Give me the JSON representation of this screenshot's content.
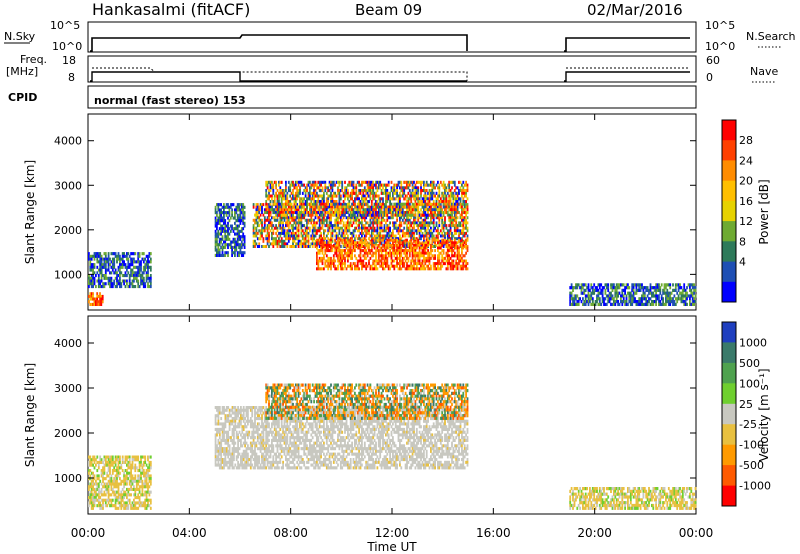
{
  "header": {
    "station": "Hankasalmi (fitACF)",
    "beam": "Beam 09",
    "date": "02/Mar/2016"
  },
  "status_panels": {
    "nsky_label": "N.Sky",
    "nsky_ticks": [
      "10^5",
      "10^0"
    ],
    "nsearch_label": "N.Search",
    "nsearch_ticks": [
      "10^5",
      "10^0"
    ],
    "freq_label_1": "Freq.",
    "freq_label_2": "[MHz]",
    "freq_ticks": [
      "18",
      "8"
    ],
    "nave_label": "Nave",
    "nave_ticks": [
      "60",
      "0"
    ],
    "cpid_label": "CPID",
    "cpid_value": "normal (fast stereo) 153"
  },
  "chart_data": [
    {
      "type": "heatmap",
      "name": "power",
      "xlabel": "",
      "ylabel": "Slant Range [km]",
      "ylim": [
        200,
        4600
      ],
      "y_ticks": [
        "4000",
        "3000",
        "2000",
        "1000"
      ],
      "colorbar": {
        "label": "Power [dB]",
        "ticks": [
          "28",
          "24",
          "20",
          "16",
          "12",
          "8",
          "4"
        ],
        "colors": [
          "#ff0000",
          "#ff4000",
          "#ff8c00",
          "#ffbf00",
          "#e6d200",
          "#6eaa32",
          "#2e7a5a",
          "#1e4fb4",
          "#0000ff"
        ]
      },
      "regions": [
        {
          "t0": 0.0,
          "t1": 0.6,
          "r0": 300,
          "r1": 600,
          "level": "high"
        },
        {
          "t0": 0.0,
          "t1": 2.5,
          "r0": 700,
          "r1": 1500,
          "level": "low"
        },
        {
          "t0": 5.0,
          "t1": 6.2,
          "r0": 1400,
          "r1": 2600,
          "level": "low"
        },
        {
          "t0": 6.5,
          "t1": 15.0,
          "r0": 1600,
          "r1": 2600,
          "level": "mixed"
        },
        {
          "t0": 9.0,
          "t1": 15.0,
          "r0": 1100,
          "r1": 1800,
          "level": "high"
        },
        {
          "t0": 7.0,
          "t1": 15.0,
          "r0": 2300,
          "r1": 3100,
          "level": "mixed"
        },
        {
          "t0": 19.0,
          "t1": 24.0,
          "r0": 300,
          "r1": 800,
          "level": "low"
        }
      ]
    },
    {
      "type": "heatmap",
      "name": "velocity",
      "xlabel": "Time UT",
      "ylabel": "Slant Range [km]",
      "ylim": [
        200,
        4600
      ],
      "y_ticks": [
        "4000",
        "3000",
        "2000",
        "1000"
      ],
      "x_ticks": [
        "00:00",
        "04:00",
        "08:00",
        "12:00",
        "16:00",
        "20:00",
        "00:00"
      ],
      "colorbar": {
        "label": "Velocity [m s⁻¹]",
        "ticks": [
          "1000",
          "500",
          "100",
          "25",
          "-25",
          "-100",
          "-500",
          "-1000"
        ],
        "colors": [
          "#1f3fbf",
          "#3a7a6a",
          "#4fa24f",
          "#6fcf2f",
          "#c8c8c0",
          "#e8c040",
          "#ff9a00",
          "#ff5a00",
          "#ff0000"
        ]
      },
      "regions": [
        {
          "t0": 0.0,
          "t1": 2.5,
          "r0": 300,
          "r1": 1500,
          "level": "slow"
        },
        {
          "t0": 5.0,
          "t1": 15.0,
          "r0": 1200,
          "r1": 2600,
          "level": "ground"
        },
        {
          "t0": 7.0,
          "t1": 15.0,
          "r0": 2300,
          "r1": 3100,
          "level": "away"
        },
        {
          "t0": 19.0,
          "t1": 24.0,
          "r0": 300,
          "r1": 800,
          "level": "slow"
        }
      ]
    }
  ]
}
